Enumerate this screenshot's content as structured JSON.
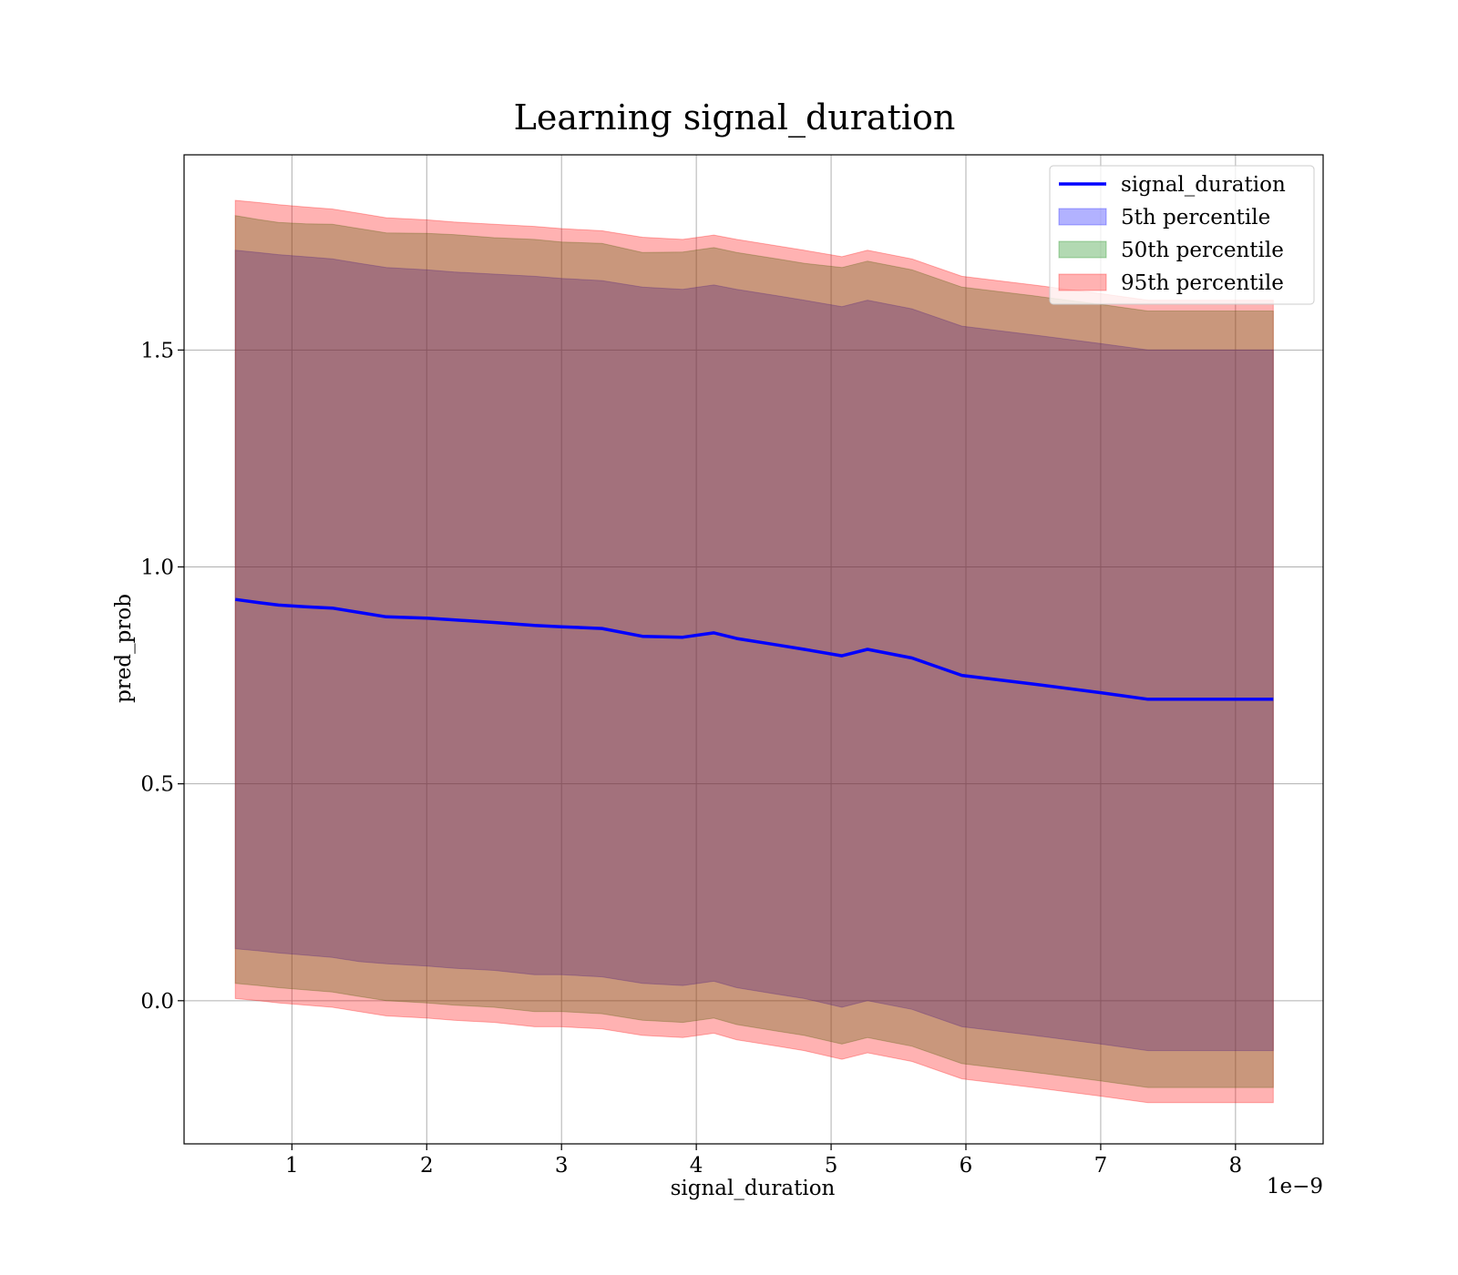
{
  "chart_data": {
    "type": "area",
    "title": "Learning signal_duration",
    "xlabel": "signal_duration",
    "ylabel": "pred_prob",
    "x_offset_label": "1e−9",
    "xlim": [
      0.2,
      8.65
    ],
    "ylim": [
      -0.33,
      1.95
    ],
    "xticks": [
      1,
      2,
      3,
      4,
      5,
      6,
      7,
      8
    ],
    "xtick_labels": [
      "1",
      "2",
      "3",
      "4",
      "5",
      "6",
      "7",
      "8"
    ],
    "yticks": [
      0.0,
      0.5,
      1.0,
      1.5
    ],
    "ytick_labels": [
      "0.0",
      "0.5",
      "1.0",
      "1.5"
    ],
    "grid": true,
    "legend_position": "top-right",
    "x": [
      0.58,
      0.75,
      0.9,
      1.1,
      1.3,
      1.5,
      1.7,
      2.0,
      2.2,
      2.5,
      2.8,
      3.0,
      3.3,
      3.6,
      3.9,
      4.13,
      4.3,
      4.6,
      4.8,
      5.08,
      5.27,
      5.6,
      5.97,
      6.5,
      7.0,
      7.35,
      7.8,
      8.28
    ],
    "series": [
      {
        "name": "signal_duration",
        "color": "#0000ff",
        "values": [
          0.925,
          0.918,
          0.912,
          0.908,
          0.905,
          0.895,
          0.885,
          0.882,
          0.878,
          0.872,
          0.865,
          0.862,
          0.858,
          0.84,
          0.838,
          0.848,
          0.835,
          0.82,
          0.81,
          0.795,
          0.81,
          0.79,
          0.75,
          0.73,
          0.71,
          0.695,
          0.695,
          0.695
        ]
      },
      {
        "name": "5th percentile",
        "color": "#0000ff",
        "lower": [
          0.12,
          0.115,
          0.11,
          0.105,
          0.1,
          0.09,
          0.085,
          0.08,
          0.075,
          0.07,
          0.06,
          0.06,
          0.055,
          0.04,
          0.035,
          0.045,
          0.03,
          0.015,
          0.005,
          -0.015,
          0.0,
          -0.02,
          -0.06,
          -0.08,
          -0.1,
          -0.115,
          -0.115,
          -0.115
        ],
        "upper": [
          1.73,
          1.725,
          1.72,
          1.715,
          1.71,
          1.7,
          1.69,
          1.685,
          1.68,
          1.675,
          1.67,
          1.665,
          1.66,
          1.645,
          1.64,
          1.65,
          1.64,
          1.625,
          1.615,
          1.6,
          1.615,
          1.595,
          1.555,
          1.535,
          1.515,
          1.5,
          1.5,
          1.5
        ]
      },
      {
        "name": "50th percentile",
        "color": "#008000",
        "lower": [
          0.04,
          0.035,
          0.03,
          0.025,
          0.02,
          0.01,
          0.0,
          -0.005,
          -0.01,
          -0.015,
          -0.025,
          -0.025,
          -0.03,
          -0.045,
          -0.05,
          -0.04,
          -0.055,
          -0.07,
          -0.08,
          -0.1,
          -0.085,
          -0.105,
          -0.145,
          -0.165,
          -0.185,
          -0.2,
          -0.2,
          -0.2
        ]
      },
      {
        "name": "95th percentile",
        "color": "#ff0000",
        "lower": [
          0.005,
          0.0,
          -0.005,
          -0.01,
          -0.015,
          -0.025,
          -0.035,
          -0.04,
          -0.045,
          -0.05,
          -0.06,
          -0.06,
          -0.065,
          -0.08,
          -0.085,
          -0.075,
          -0.09,
          -0.105,
          -0.115,
          -0.135,
          -0.12,
          -0.14,
          -0.18,
          -0.2,
          -0.22,
          -0.235,
          -0.235,
          -0.235
        ],
        "upper": [
          1.845,
          1.84,
          1.835,
          1.83,
          1.825,
          1.815,
          1.805,
          1.8,
          1.795,
          1.79,
          1.785,
          1.78,
          1.775,
          1.76,
          1.755,
          1.765,
          1.755,
          1.74,
          1.73,
          1.715,
          1.73,
          1.71,
          1.67,
          1.65,
          1.63,
          1.615,
          1.615,
          1.615
        ]
      }
    ]
  }
}
